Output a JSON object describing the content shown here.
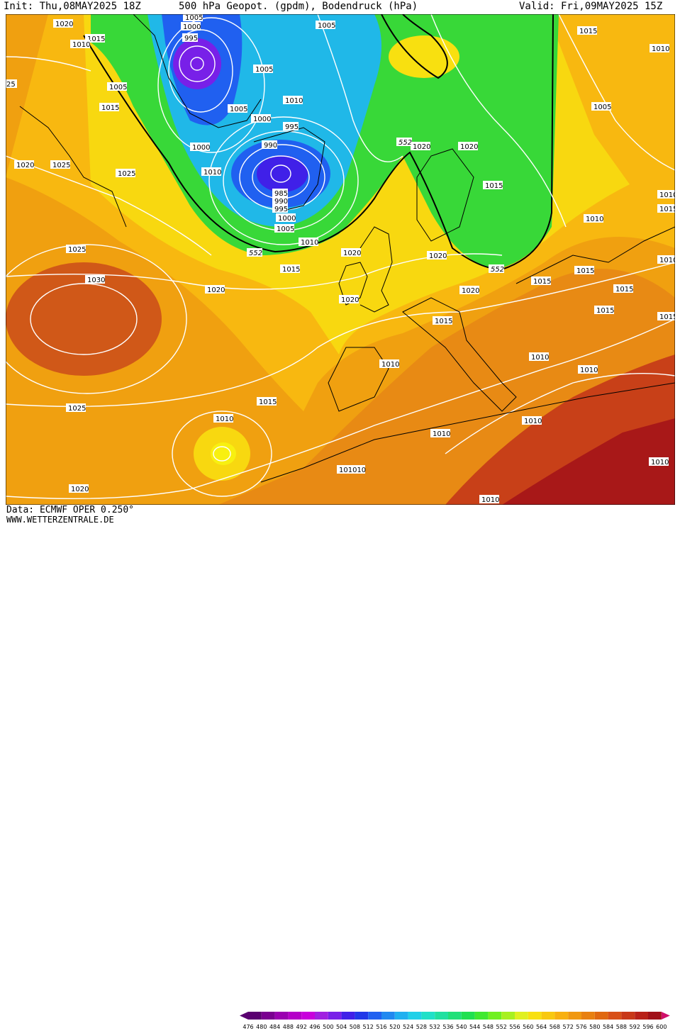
{
  "header": {
    "init_text": "Init: Thu,08MAY2025 18Z",
    "title_text": "500 hPa Geopot. (gpdm), Bodendruck (hPa)",
    "valid_text": "Valid: Fri,09MAY2025 15Z"
  },
  "footer": {
    "data_text": "Data: ECMWF OPER 0.250°",
    "url_text": "WWW.WETTERZENTRALE.DE"
  },
  "legend": {
    "values": [
      "476",
      "480",
      "484",
      "488",
      "492",
      "496",
      "500",
      "504",
      "508",
      "512",
      "516",
      "520",
      "524",
      "528",
      "532",
      "536",
      "540",
      "544",
      "548",
      "552",
      "556",
      "560",
      "564",
      "568",
      "572",
      "576",
      "580",
      "584",
      "588",
      "592",
      "596",
      "600"
    ],
    "colors": [
      "#5a0070",
      "#7a0090",
      "#9a00b0",
      "#b400c8",
      "#c800dc",
      "#a020e0",
      "#7820e8",
      "#4020e8",
      "#2038e8",
      "#2060f0",
      "#2088f0",
      "#20b0f0",
      "#20d0e8",
      "#20e0c8",
      "#20e0a0",
      "#20e078",
      "#20e050",
      "#40e830",
      "#70f020",
      "#a8f020",
      "#e0f020",
      "#f8e010",
      "#f8c810",
      "#f8b010",
      "#f09810",
      "#e88010",
      "#e06810",
      "#d85018",
      "#c83818",
      "#b82018",
      "#a01018",
      "#d0106a"
    ]
  },
  "map": {
    "isobar_labels": [
      {
        "text": "1020"
      },
      {
        "text": "1015"
      },
      {
        "text": "1010"
      },
      {
        "text": "1005"
      },
      {
        "text": "1015"
      },
      {
        "text": "1005"
      },
      {
        "text": "1000"
      },
      {
        "text": "995"
      },
      {
        "text": "1005"
      },
      {
        "text": "1005"
      },
      {
        "text": "1010"
      },
      {
        "text": "1005"
      },
      {
        "text": "1000"
      },
      {
        "text": "1000"
      },
      {
        "text": "995"
      },
      {
        "text": "990"
      },
      {
        "text": "1010"
      },
      {
        "text": "985"
      },
      {
        "text": "990"
      },
      {
        "text": "995"
      },
      {
        "text": "1000"
      },
      {
        "text": "1005"
      },
      {
        "text": "1010"
      },
      {
        "text": "1020"
      },
      {
        "text": "1020"
      },
      {
        "text": "1015"
      },
      {
        "text": "1010"
      },
      {
        "text": "1005"
      },
      {
        "text": "1020"
      },
      {
        "text": "1025"
      },
      {
        "text": "1025"
      },
      {
        "text": "1025"
      },
      {
        "text": "1030"
      },
      {
        "text": "1020"
      },
      {
        "text": "1015"
      },
      {
        "text": "1020"
      },
      {
        "text": "1020"
      },
      {
        "text": "1020"
      },
      {
        "text": "1020"
      },
      {
        "text": "1015"
      },
      {
        "text": "1015"
      },
      {
        "text": "1010"
      },
      {
        "text": "1015"
      },
      {
        "text": "1015"
      },
      {
        "text": "1015"
      },
      {
        "text": "1015"
      },
      {
        "text": "1010"
      },
      {
        "text": "1010"
      },
      {
        "text": "1010"
      },
      {
        "text": "1010"
      },
      {
        "text": "1025"
      },
      {
        "text": "1015"
      },
      {
        "text": "1010"
      },
      {
        "text": "1010"
      },
      {
        "text": "1010"
      },
      {
        "text": "101010"
      },
      {
        "text": "1020"
      },
      {
        "text": "1010"
      },
      {
        "text": "1015"
      },
      {
        "text": "1010"
      },
      {
        "text": "1010"
      },
      {
        "text": "1015"
      },
      {
        "text": "25"
      }
    ],
    "contour_552_labels": [
      {
        "text": "552"
      },
      {
        "text": "552"
      },
      {
        "text": "552"
      }
    ]
  }
}
